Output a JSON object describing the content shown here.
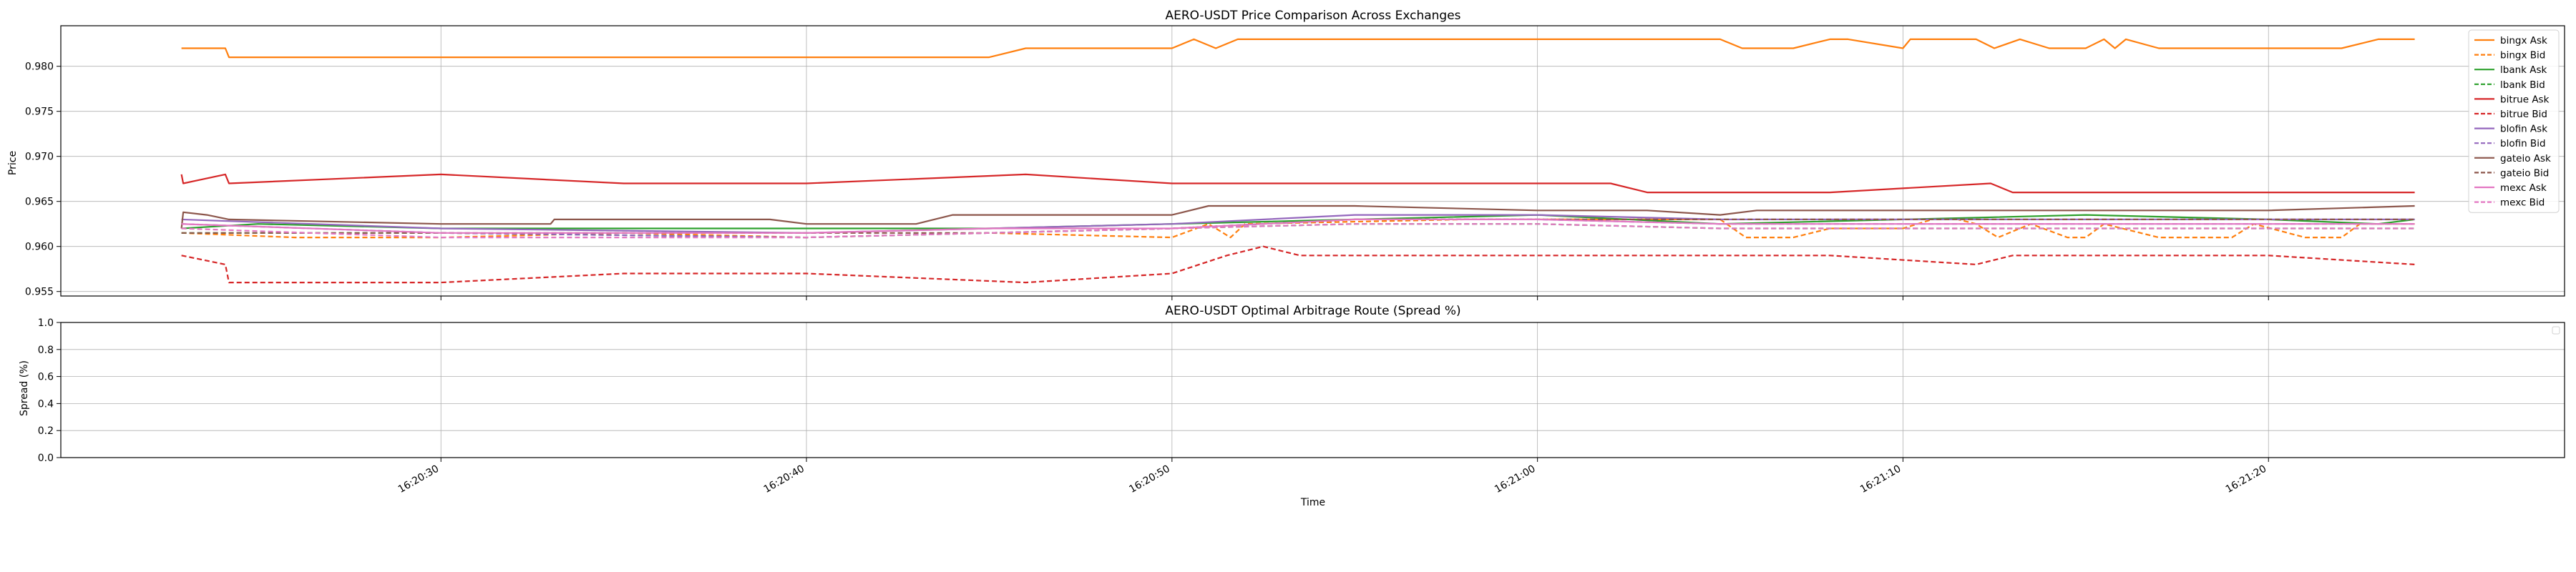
{
  "chart_data": [
    {
      "type": "line",
      "title": "AERO-USDT Price Comparison Across Exchanges",
      "xlabel": "",
      "ylabel": "Price",
      "ylim": [
        0.9545,
        0.9845
      ],
      "yticks": [
        0.955,
        0.96,
        0.965,
        0.97,
        0.975,
        0.98
      ],
      "ytick_labels": [
        "0.955",
        "0.960",
        "0.965",
        "0.970",
        "0.975",
        "0.980"
      ],
      "xlim": [
        "16:20:19.6",
        "16:21:28.1"
      ],
      "xticks": [
        "16:20:30",
        "16:20:40",
        "16:20:50",
        "16:21:00",
        "16:21:10",
        "16:21:20"
      ],
      "grid": true,
      "legend_position": "top-right",
      "series": [
        {
          "name": "bingx Ask",
          "color": "#ff7f0e",
          "dash": "solid",
          "x": [
            "16:20:22.9",
            "16:20:24.1",
            "16:20:24.2",
            "16:20:30",
            "16:20:45",
            "16:20:46",
            "16:20:50",
            "16:20:50.6",
            "16:20:51.2",
            "16:20:51.8",
            "16:21:05",
            "16:21:05.6",
            "16:21:07",
            "16:21:08",
            "16:21:08.5",
            "16:21:10",
            "16:21:10.2",
            "16:21:12",
            "16:21:12.5",
            "16:21:13.2",
            "16:21:14",
            "16:21:15",
            "16:21:15.5",
            "16:21:15.8",
            "16:21:16.1",
            "16:21:17",
            "16:21:19",
            "16:21:20",
            "16:21:22",
            "16:21:23",
            "16:21:24"
          ],
          "values": [
            0.982,
            0.982,
            0.981,
            0.981,
            0.981,
            0.982,
            0.982,
            0.983,
            0.982,
            0.983,
            0.983,
            0.982,
            0.982,
            0.983,
            0.983,
            0.982,
            0.983,
            0.983,
            0.982,
            0.983,
            0.982,
            0.982,
            0.983,
            0.982,
            0.983,
            0.982,
            0.982,
            0.982,
            0.982,
            0.983,
            0.983
          ]
        },
        {
          "name": "bingx Bid",
          "color": "#ff7f0e",
          "dash": "dashed",
          "x": [
            "16:20:22.9",
            "16:20:26",
            "16:20:30",
            "16:20:35",
            "16:20:40",
            "16:20:45",
            "16:20:50",
            "16:20:51",
            "16:20:51.6",
            "16:20:52",
            "16:20:58",
            "16:21:05",
            "16:21:05.7",
            "16:21:07",
            "16:21:08",
            "16:21:10",
            "16:21:10.8",
            "16:21:11.5",
            "16:21:12",
            "16:21:12.6",
            "16:21:13.5",
            "16:21:14.5",
            "16:21:15",
            "16:21:15.5",
            "16:21:17",
            "16:21:19",
            "16:21:19.6",
            "16:21:21",
            "16:21:22",
            "16:21:22.5",
            "16:21:24"
          ],
          "values": [
            0.9615,
            0.961,
            0.961,
            0.9615,
            0.961,
            0.9615,
            0.961,
            0.9625,
            0.961,
            0.9625,
            0.963,
            0.963,
            0.961,
            0.961,
            0.962,
            0.962,
            0.963,
            0.963,
            0.9625,
            0.961,
            0.9625,
            0.961,
            0.961,
            0.9625,
            0.961,
            0.961,
            0.9625,
            0.961,
            0.961,
            0.9625,
            0.9625
          ]
        },
        {
          "name": "lbank Ask",
          "color": "#2ca02c",
          "dash": "solid",
          "x": [
            "16:20:22.9",
            "16:20:25",
            "16:20:30",
            "16:20:40",
            "16:20:45",
            "16:20:50",
            "16:20:55",
            "16:21:00",
            "16:21:05",
            "16:21:10",
            "16:21:15",
            "16:21:20",
            "16:21:23",
            "16:21:24"
          ],
          "values": [
            0.962,
            0.9625,
            0.962,
            0.962,
            0.962,
            0.9625,
            0.963,
            0.9635,
            0.9625,
            0.963,
            0.9635,
            0.963,
            0.9625,
            0.963
          ]
        },
        {
          "name": "lbank Bid",
          "color": "#2ca02c",
          "dash": "dashed",
          "x": [
            "16:20:22.9",
            "16:20:30",
            "16:20:40",
            "16:20:45",
            "16:20:50",
            "16:20:55",
            "16:21:00",
            "16:21:05",
            "16:21:10",
            "16:21:15",
            "16:21:20",
            "16:21:24"
          ],
          "values": [
            0.9615,
            0.9615,
            0.961,
            0.9615,
            0.962,
            0.9625,
            0.9625,
            0.962,
            0.962,
            0.962,
            0.962,
            0.962
          ]
        },
        {
          "name": "bitrue Ask",
          "color": "#d62728",
          "dash": "solid",
          "x": [
            "16:20:22.9",
            "16:20:22.95",
            "16:20:24.1",
            "16:20:24.2",
            "16:20:30",
            "16:20:35",
            "16:20:40",
            "16:20:46",
            "16:20:50",
            "16:20:55",
            "16:21:00",
            "16:21:02",
            "16:21:03",
            "16:21:08",
            "16:21:12.4",
            "16:21:13",
            "16:21:18",
            "16:21:24"
          ],
          "values": [
            0.968,
            0.967,
            0.968,
            0.967,
            0.968,
            0.967,
            0.967,
            0.968,
            0.967,
            0.967,
            0.967,
            0.967,
            0.966,
            0.966,
            0.967,
            0.966,
            0.966,
            0.966
          ]
        },
        {
          "name": "bitrue Bid",
          "color": "#d62728",
          "dash": "dashed",
          "x": [
            "16:20:22.9",
            "16:20:24.1",
            "16:20:24.2",
            "16:20:30",
            "16:20:35",
            "16:20:40",
            "16:20:46",
            "16:20:50",
            "16:20:51.5",
            "16:20:52.5",
            "16:20:53.5",
            "16:21:00",
            "16:21:08",
            "16:21:12",
            "16:21:13",
            "16:21:20",
            "16:21:24"
          ],
          "values": [
            0.959,
            0.958,
            0.956,
            0.956,
            0.957,
            0.957,
            0.956,
            0.957,
            0.959,
            0.96,
            0.959,
            0.959,
            0.959,
            0.958,
            0.959,
            0.959,
            0.958
          ]
        },
        {
          "name": "blofin Ask",
          "color": "#9467bd",
          "dash": "solid",
          "x": [
            "16:20:22.9",
            "16:20:30",
            "16:20:40",
            "16:20:45",
            "16:20:50",
            "16:20:55",
            "16:21:00",
            "16:21:05",
            "16:21:10",
            "16:21:15",
            "16:21:20",
            "16:21:24"
          ],
          "values": [
            0.963,
            0.962,
            0.9615,
            0.962,
            0.9625,
            0.9635,
            0.9635,
            0.963,
            0.963,
            0.963,
            0.963,
            0.963
          ]
        },
        {
          "name": "blofin Bid",
          "color": "#9467bd",
          "dash": "dashed",
          "x": [
            "16:20:22.9",
            "16:20:30",
            "16:20:40",
            "16:20:45",
            "16:20:50",
            "16:20:55",
            "16:21:00",
            "16:21:05",
            "16:21:10",
            "16:21:15",
            "16:21:20",
            "16:21:24"
          ],
          "values": [
            0.9625,
            0.9615,
            0.961,
            0.9615,
            0.962,
            0.963,
            0.963,
            0.9625,
            0.9625,
            0.9625,
            0.9625,
            0.9625
          ]
        },
        {
          "name": "gateio Ask",
          "color": "#8c564b",
          "dash": "solid",
          "x": [
            "16:20:22.9",
            "16:20:22.95",
            "16:20:23.6",
            "16:20:24.2",
            "16:20:30",
            "16:20:33",
            "16:20:33.1",
            "16:20:39",
            "16:20:40",
            "16:20:43",
            "16:20:44",
            "16:20:45",
            "16:20:50",
            "16:20:51",
            "16:20:55",
            "16:21:00",
            "16:21:03",
            "16:21:05",
            "16:21:06",
            "16:21:10",
            "16:21:15",
            "16:21:20",
            "16:21:24"
          ],
          "values": [
            0.962,
            0.9638,
            0.9635,
            0.963,
            0.9625,
            0.9625,
            0.963,
            0.963,
            0.9625,
            0.9625,
            0.9635,
            0.9635,
            0.9635,
            0.9645,
            0.9645,
            0.964,
            0.964,
            0.9635,
            0.964,
            0.964,
            0.964,
            0.964,
            0.9645
          ]
        },
        {
          "name": "gateio Bid",
          "color": "#8c564b",
          "dash": "dashed",
          "x": [
            "16:20:22.9",
            "16:20:30",
            "16:20:40",
            "16:20:45",
            "16:20:50",
            "16:20:55",
            "16:21:00",
            "16:21:05",
            "16:21:10",
            "16:21:15",
            "16:21:20",
            "16:21:24"
          ],
          "values": [
            0.9615,
            0.9615,
            0.9615,
            0.9615,
            0.962,
            0.963,
            0.963,
            0.963,
            0.963,
            0.963,
            0.963,
            0.963
          ]
        },
        {
          "name": "mexc Ask",
          "color": "#e377c2",
          "dash": "solid",
          "x": [
            "16:20:22.9",
            "16:20:30",
            "16:20:40",
            "16:20:45",
            "16:20:50",
            "16:20:55",
            "16:21:00",
            "16:21:05",
            "16:21:10",
            "16:21:15",
            "16:21:20",
            "16:21:24"
          ],
          "values": [
            0.9625,
            0.9615,
            0.9615,
            0.962,
            0.962,
            0.963,
            0.963,
            0.9625,
            0.9625,
            0.9625,
            0.9625,
            0.9625
          ]
        },
        {
          "name": "mexc Bid",
          "color": "#e377c2",
          "dash": "dashed",
          "x": [
            "16:20:22.9",
            "16:20:30",
            "16:20:40",
            "16:20:45",
            "16:20:50",
            "16:20:55",
            "16:21:00",
            "16:21:05",
            "16:21:10",
            "16:21:15",
            "16:21:20",
            "16:21:24"
          ],
          "values": [
            0.962,
            0.961,
            0.961,
            0.9615,
            0.962,
            0.9625,
            0.9625,
            0.962,
            0.962,
            0.962,
            0.962,
            0.962
          ]
        }
      ]
    },
    {
      "type": "line",
      "title": "AERO-USDT Optimal Arbitrage Route (Spread %)",
      "xlabel": "Time",
      "ylabel": "Spread (%)",
      "ylim": [
        0.0,
        1.0
      ],
      "yticks": [
        0.0,
        0.2,
        0.4,
        0.6,
        0.8,
        1.0
      ],
      "ytick_labels": [
        "0.0",
        "0.2",
        "0.4",
        "0.6",
        "0.8",
        "1.0"
      ],
      "xlim": [
        "16:20:19.6",
        "16:21:28.1"
      ],
      "xticks": [
        "16:20:30",
        "16:20:40",
        "16:20:50",
        "16:21:00",
        "16:21:10",
        "16:21:20"
      ],
      "xtick_labels": [
        "16:20:30",
        "16:20:40",
        "16:20:50",
        "16:21:00",
        "16:21:10",
        "16:21:20"
      ],
      "grid": true,
      "legend_position": "top-right",
      "series": []
    }
  ]
}
